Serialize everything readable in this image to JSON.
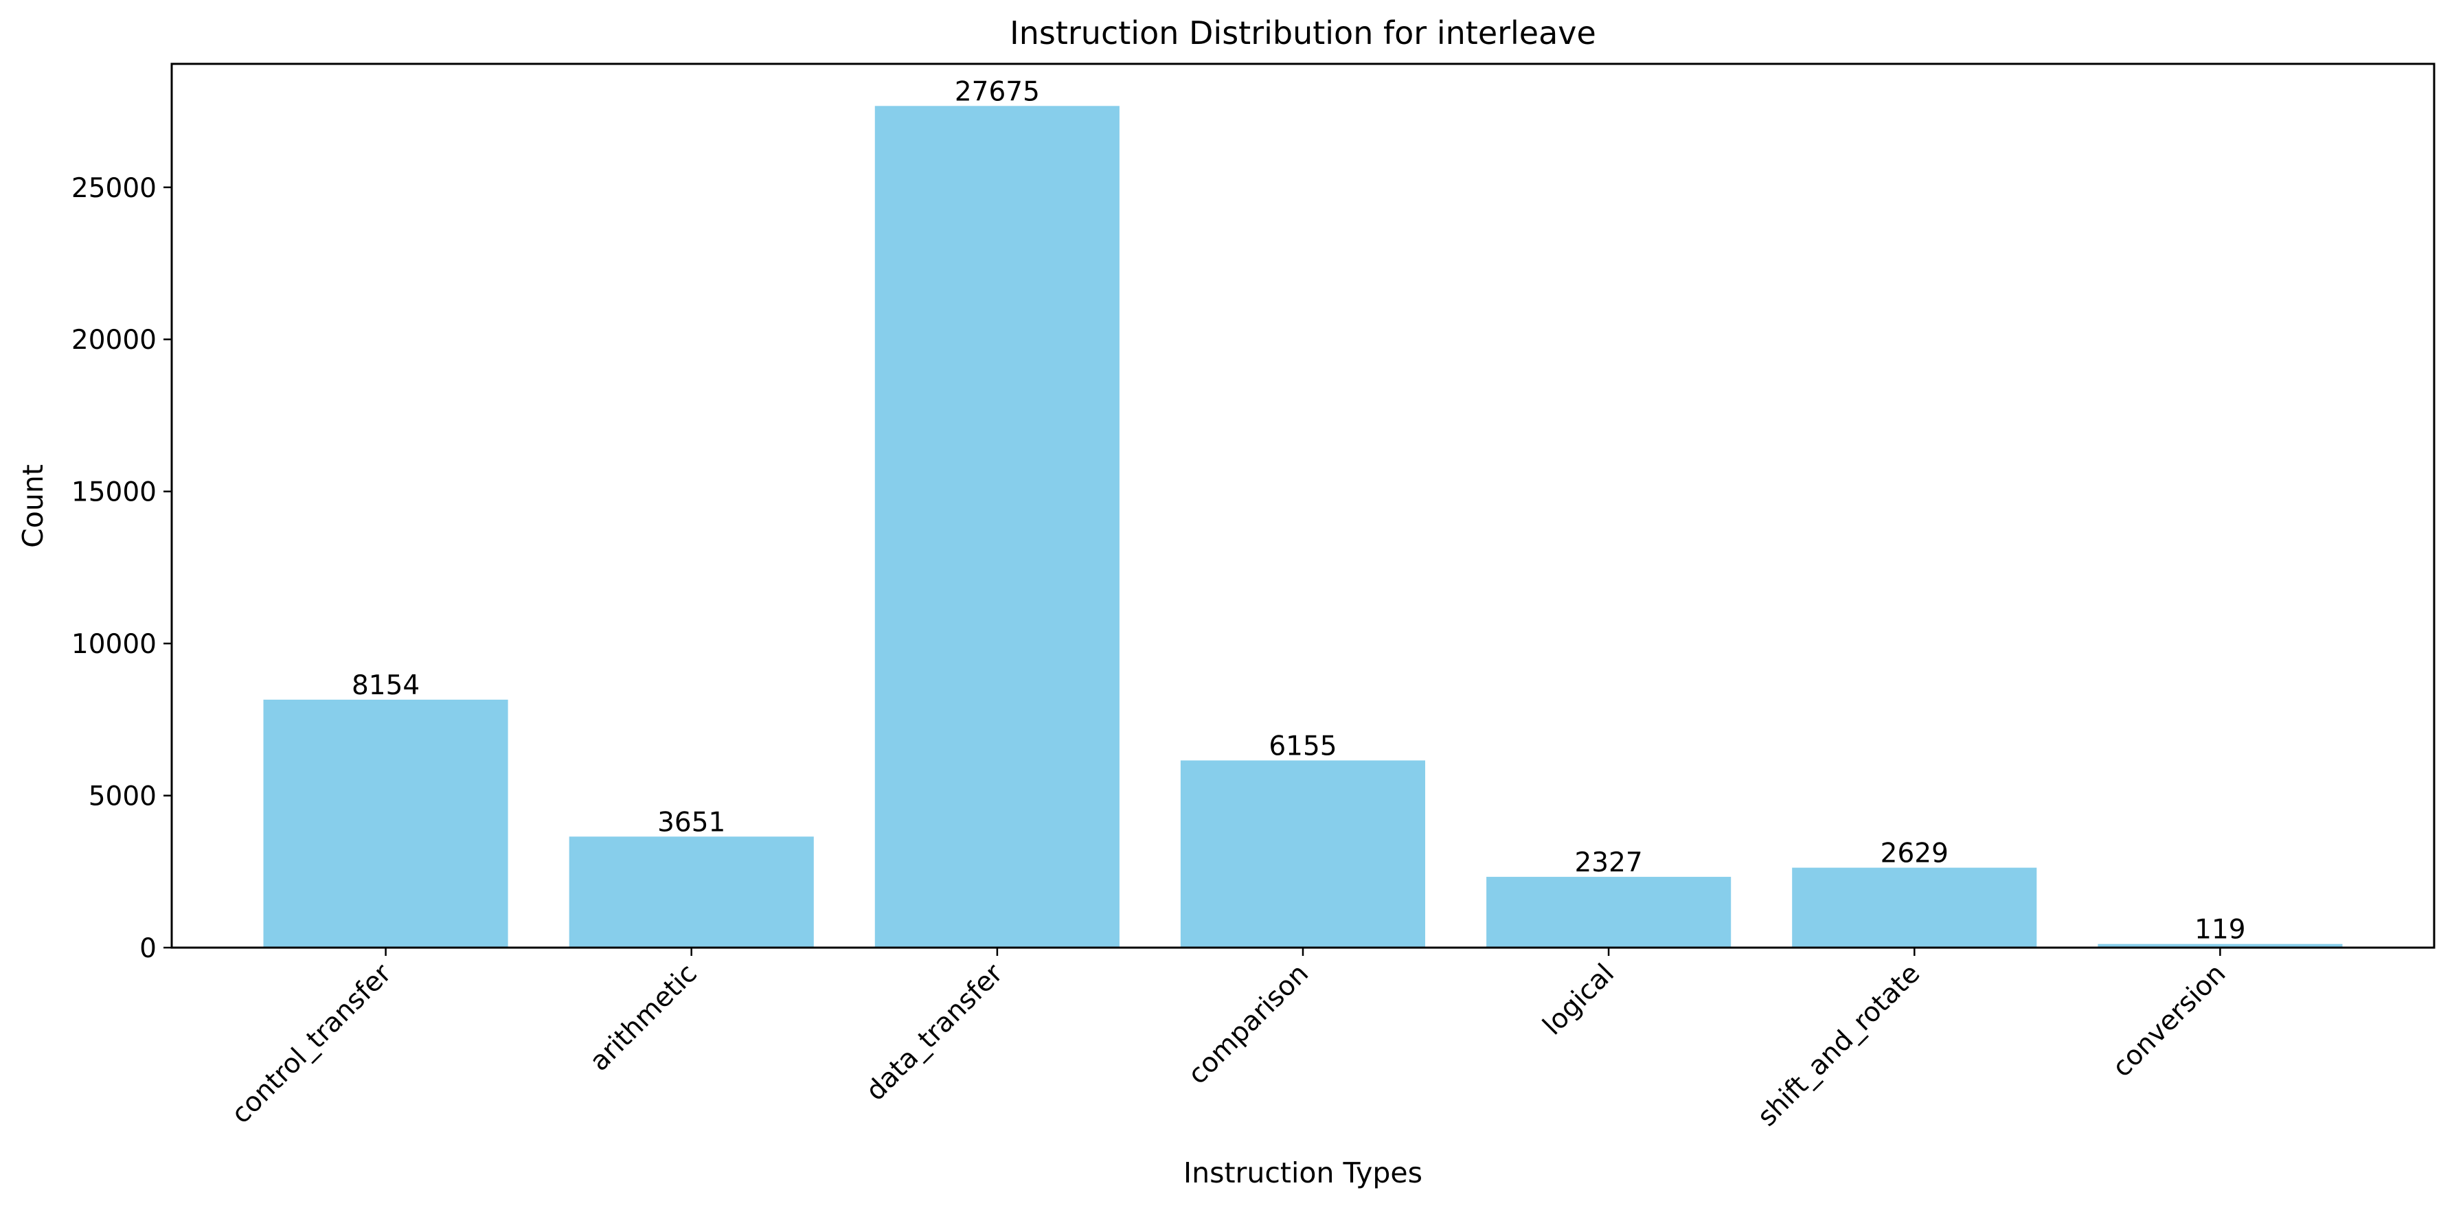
{
  "chart_data": {
    "type": "bar",
    "title": "Instruction Distribution for interleave",
    "xlabel": "Instruction Types",
    "ylabel": "Count",
    "categories": [
      "control_transfer",
      "arithmetic",
      "data_transfer",
      "comparison",
      "logical",
      "shift_and_rotate",
      "conversion"
    ],
    "values": [
      8154,
      3651,
      27675,
      6155,
      2327,
      2629,
      119
    ],
    "data_labels": [
      "8154",
      "3651",
      "27675",
      "6155",
      "2327",
      "2629",
      "119"
    ],
    "ylim": [
      0,
      29059
    ],
    "yticks": [
      0,
      5000,
      10000,
      15000,
      20000,
      25000
    ],
    "ytick_labels": [
      "0",
      "5000",
      "10000",
      "15000",
      "20000",
      "25000"
    ],
    "bar_color": "#87CEEB",
    "grid": false,
    "legend": "none"
  }
}
